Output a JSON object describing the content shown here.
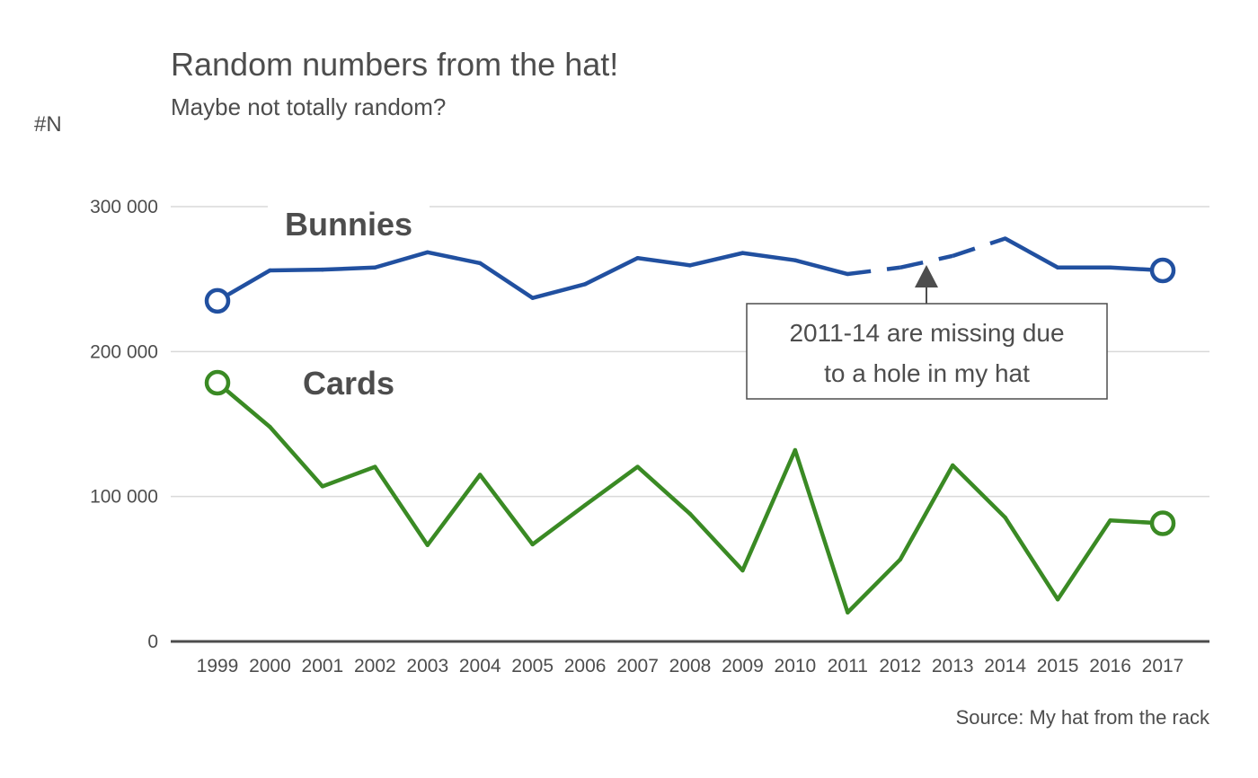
{
  "chart_data": {
    "type": "line",
    "title": "Random numbers from the hat!",
    "subtitle": "Maybe not totally random?",
    "ylabel": "#N",
    "xlabel": "",
    "caption": "Source: My hat from the rack",
    "ylim": [
      0,
      300000
    ],
    "yticks": [
      0,
      100000,
      200000,
      300000
    ],
    "ytick_labels": [
      "0",
      "100 000",
      "200 000",
      "300 000"
    ],
    "x": [
      1999,
      2000,
      2001,
      2002,
      2003,
      2004,
      2005,
      2006,
      2007,
      2008,
      2009,
      2010,
      2011,
      2012,
      2013,
      2014,
      2015,
      2016,
      2017
    ],
    "grid": true,
    "legend": "direct-labels",
    "series": [
      {
        "name": "Bunnies",
        "color": "#2150a0",
        "values": [
          235000,
          256000,
          256500,
          258000,
          268500,
          261000,
          237000,
          246500,
          264500,
          259500,
          268000,
          263000,
          253500,
          258000,
          266000,
          278000,
          258000,
          258000,
          256000
        ],
        "dashed_range": [
          2011,
          2014
        ]
      },
      {
        "name": "Cards",
        "color": "#3a8a24",
        "values": [
          178500,
          148000,
          107000,
          120500,
          66500,
          115000,
          67000,
          94000,
          120500,
          88000,
          49000,
          132000,
          20000,
          56500,
          121500,
          85500,
          29000,
          83500,
          81500
        ]
      }
    ],
    "annotation": {
      "lines": [
        "2011-14 are missing due",
        "to a hole in my hat"
      ],
      "arrow_x": 2012.5
    }
  }
}
